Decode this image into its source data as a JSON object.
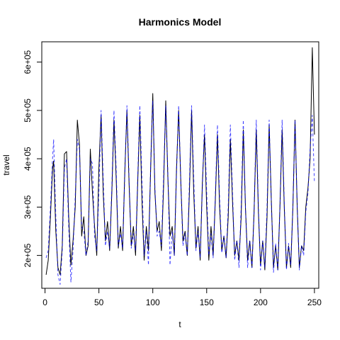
{
  "chart_data": {
    "type": "line",
    "title": "Harmonics Model",
    "xlabel": "t",
    "ylabel": "travel",
    "xlim": [
      -3,
      254
    ],
    "ylim": [
      132000,
      642000
    ],
    "x_ticks": [
      {
        "value": 0,
        "label": "0"
      },
      {
        "value": 50,
        "label": "50"
      },
      {
        "value": 100,
        "label": "100"
      },
      {
        "value": 150,
        "label": "150"
      },
      {
        "value": 200,
        "label": "200"
      },
      {
        "value": 250,
        "label": "250"
      }
    ],
    "y_ticks": [
      {
        "value": 200000,
        "label": "2e+05"
      },
      {
        "value": 300000,
        "label": "3e+05"
      },
      {
        "value": 400000,
        "label": "4e+05"
      },
      {
        "value": 500000,
        "label": "5e+05"
      },
      {
        "value": 600000,
        "label": "6e+05"
      }
    ],
    "colors": {
      "observed": "#000000",
      "fitted": "#0000ff"
    },
    "series": [
      {
        "style": "solid",
        "x": [
          1,
          3,
          5,
          7,
          8,
          10,
          12,
          14,
          16,
          18,
          20,
          22,
          24,
          26,
          28,
          30,
          32,
          34,
          36,
          38,
          40,
          42,
          44,
          46,
          48,
          50,
          52,
          54,
          56,
          58,
          60,
          62,
          64,
          66,
          68,
          70,
          72,
          74,
          76,
          78,
          80,
          82,
          84,
          86,
          88,
          90,
          92,
          94,
          96,
          98,
          100,
          102,
          104,
          106,
          108,
          110,
          112,
          114,
          116,
          118,
          120,
          122,
          124,
          126,
          128,
          130,
          132,
          134,
          136,
          138,
          140,
          142,
          144,
          146,
          148,
          150,
          152,
          154,
          156,
          158,
          160,
          162,
          164,
          166,
          168,
          170,
          172,
          174,
          176,
          178,
          180,
          182,
          184,
          186,
          188,
          190,
          192,
          194,
          196,
          198,
          200,
          202,
          204,
          206,
          208,
          210,
          212,
          214,
          216,
          218,
          220,
          222,
          224,
          226,
          228,
          230,
          232,
          234,
          236,
          238,
          240,
          242,
          244,
          246,
          248,
          250
        ],
        "values": [
          160000,
          190000,
          280000,
          380000,
          395000,
          250000,
          175000,
          160000,
          220000,
          410000,
          415000,
          280000,
          180000,
          230000,
          300000,
          480000,
          430000,
          240000,
          280000,
          200000,
          220000,
          420000,
          330000,
          260000,
          200000,
          380000,
          490000,
          330000,
          230000,
          270000,
          210000,
          330000,
          480000,
          360000,
          215000,
          260000,
          210000,
          370000,
          500000,
          350000,
          220000,
          260000,
          200000,
          350000,
          490000,
          310000,
          190000,
          260000,
          210000,
          380000,
          535000,
          330000,
          250000,
          270000,
          210000,
          340000,
          520000,
          360000,
          240000,
          260000,
          200000,
          380000,
          500000,
          350000,
          230000,
          250000,
          200000,
          330000,
          500000,
          330000,
          215000,
          260000,
          190000,
          350000,
          450000,
          300000,
          190000,
          260000,
          200000,
          310000,
          450000,
          300000,
          210000,
          240000,
          195000,
          280000,
          440000,
          310000,
          200000,
          230000,
          190000,
          280000,
          460000,
          300000,
          190000,
          230000,
          175000,
          290000,
          460000,
          290000,
          180000,
          230000,
          170000,
          280000,
          470000,
          310000,
          175000,
          220000,
          170000,
          300000,
          460000,
          300000,
          175000,
          220000,
          175000,
          300000,
          480000,
          300000,
          175000,
          220000,
          210000,
          300000,
          340000,
          400000,
          630000,
          450000
        ]
      },
      {
        "style": "dashed",
        "x": [
          1,
          3,
          5,
          7,
          8,
          10,
          12,
          14,
          16,
          18,
          20,
          22,
          24,
          26,
          28,
          30,
          32,
          34,
          36,
          38,
          40,
          42,
          44,
          46,
          48,
          50,
          52,
          54,
          56,
          58,
          60,
          62,
          64,
          66,
          68,
          70,
          72,
          74,
          76,
          78,
          80,
          82,
          84,
          86,
          88,
          90,
          92,
          94,
          96,
          98,
          100,
          102,
          104,
          106,
          108,
          110,
          112,
          114,
          116,
          118,
          120,
          122,
          124,
          126,
          128,
          130,
          132,
          134,
          136,
          138,
          140,
          142,
          144,
          146,
          148,
          150,
          152,
          154,
          156,
          158,
          160,
          162,
          164,
          166,
          168,
          170,
          172,
          174,
          176,
          178,
          180,
          182,
          184,
          186,
          188,
          190,
          192,
          194,
          196,
          198,
          200,
          202,
          204,
          206,
          208,
          210,
          212,
          214,
          216,
          218,
          220,
          222,
          224,
          226,
          228,
          230,
          232,
          234,
          236,
          238,
          240,
          242,
          244,
          246,
          248,
          250
        ],
        "values": [
          195000,
          210000,
          300000,
          400000,
          440000,
          280000,
          160000,
          140000,
          210000,
          380000,
          400000,
          260000,
          145000,
          210000,
          320000,
          440000,
          420000,
          260000,
          250000,
          200000,
          230000,
          400000,
          390000,
          240000,
          210000,
          330000,
          500000,
          360000,
          220000,
          250000,
          215000,
          340000,
          500000,
          380000,
          220000,
          245000,
          215000,
          360000,
          510000,
          360000,
          215000,
          245000,
          210000,
          360000,
          510000,
          350000,
          200000,
          250000,
          180000,
          390000,
          520000,
          340000,
          240000,
          250000,
          220000,
          360000,
          510000,
          370000,
          180000,
          250000,
          200000,
          370000,
          510000,
          350000,
          220000,
          245000,
          200000,
          350000,
          510000,
          360000,
          210000,
          250000,
          195000,
          340000,
          470000,
          330000,
          200000,
          245000,
          195000,
          320000,
          470000,
          320000,
          205000,
          240000,
          195000,
          300000,
          470000,
          330000,
          190000,
          230000,
          175000,
          300000,
          480000,
          300000,
          175000,
          230000,
          175000,
          290000,
          480000,
          300000,
          170000,
          230000,
          175000,
          300000,
          480000,
          310000,
          165000,
          225000,
          170000,
          300000,
          480000,
          310000,
          170000,
          225000,
          180000,
          300000,
          480000,
          300000,
          170000,
          220000,
          200000,
          290000,
          330000,
          420000,
          490000,
          350000
        ]
      }
    ]
  }
}
